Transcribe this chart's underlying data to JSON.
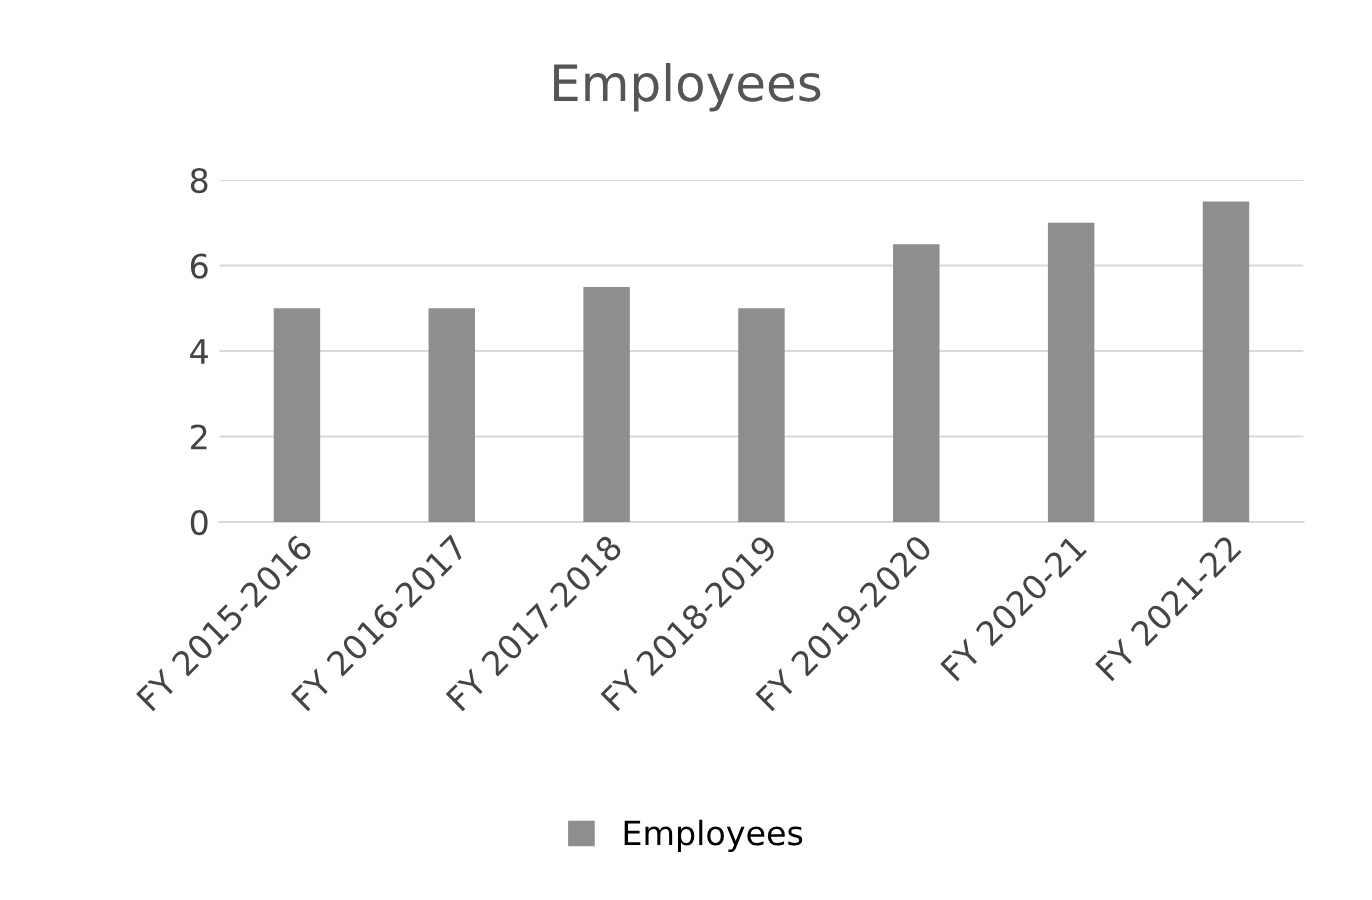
{
  "chart_data": {
    "type": "bar",
    "title": "Employees",
    "categories": [
      "FY 2015-2016",
      "FY 2016-2017",
      "FY 2017-2018",
      "FY 2018-2019",
      "FY 2019-2020",
      "FY 2020-21",
      "FY 2021-22"
    ],
    "series": [
      {
        "name": "Employees",
        "color": "#8c8f8c",
        "values": [
          5,
          5,
          5.5,
          5,
          6.5,
          7,
          7.5
        ]
      }
    ],
    "ylim": [
      0,
      8
    ],
    "yticks": [
      0,
      2,
      4,
      6,
      8
    ],
    "grid": "y",
    "legend": "bottom"
  }
}
